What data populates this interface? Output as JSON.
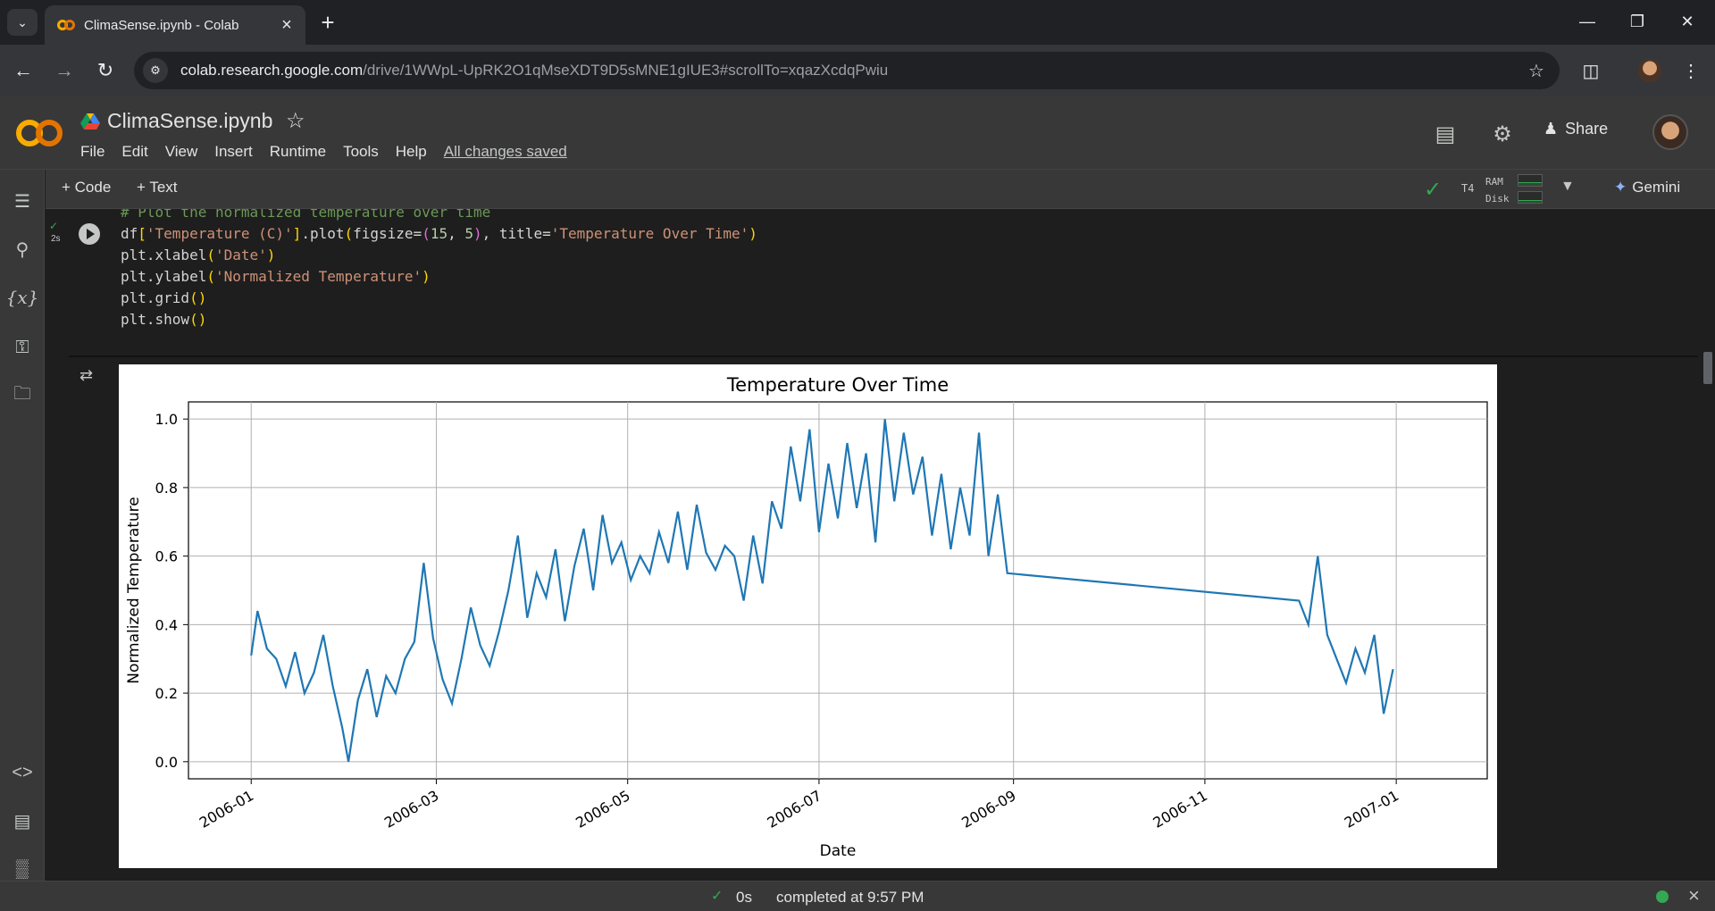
{
  "browser": {
    "tab_title": "ClimaSense.ipynb - Colab",
    "url_host": "colab.research.google.com",
    "url_path": "/drive/1WWpL-UpRK2O1qMseXDT9D5sMNE1gIUE3#scrollTo=xqazXcdqPwiu"
  },
  "colab": {
    "notebook_title": "ClimaSense.ipynb",
    "menu": [
      "File",
      "Edit",
      "View",
      "Insert",
      "Runtime",
      "Tools",
      "Help"
    ],
    "saved_status": "All changes saved",
    "share_label": "Share"
  },
  "toolbar": {
    "add_code": "+ Code",
    "add_text": "+ Text",
    "runtime_type": "T4",
    "ram_label": "RAM",
    "disk_label": "Disk",
    "gemini_label": "Gemini"
  },
  "cell": {
    "exec_time": "2s",
    "comment_line": "# Plot the normalized temperature over time",
    "lines": [
      "df['Temperature (C)'].plot(figsize=(15, 5), title='Temperature Over Time')",
      "plt.xlabel('Date')",
      "plt.ylabel('Normalized Temperature')",
      "plt.grid()",
      "plt.show()"
    ]
  },
  "chart_data": {
    "type": "line",
    "title": "Temperature Over Time",
    "xlabel": "Date",
    "ylabel": "Normalized Temperature",
    "ylim": [
      -0.05,
      1.05
    ],
    "xlim": [
      "2005-12-12",
      "2007-01-30"
    ],
    "grid": true,
    "x_ticks": [
      "2006-01",
      "2006-03",
      "2006-05",
      "2006-07",
      "2006-09",
      "2006-11",
      "2007-01"
    ],
    "y_ticks": [
      "0.0",
      "0.2",
      "0.4",
      "0.6",
      "0.8",
      "1.0"
    ],
    "color": "#1f77b4",
    "series": [
      {
        "points": [
          [
            "2006-01-01",
            0.31
          ],
          [
            "2006-01-03",
            0.44
          ],
          [
            "2006-01-06",
            0.33
          ],
          [
            "2006-01-09",
            0.3
          ],
          [
            "2006-01-12",
            0.22
          ],
          [
            "2006-01-15",
            0.32
          ],
          [
            "2006-01-18",
            0.2
          ],
          [
            "2006-01-21",
            0.26
          ],
          [
            "2006-01-24",
            0.37
          ],
          [
            "2006-01-27",
            0.22
          ],
          [
            "2006-01-30",
            0.1
          ],
          [
            "2006-02-01",
            0.0
          ],
          [
            "2006-02-04",
            0.18
          ],
          [
            "2006-02-07",
            0.27
          ],
          [
            "2006-02-10",
            0.13
          ],
          [
            "2006-02-13",
            0.25
          ],
          [
            "2006-02-16",
            0.2
          ],
          [
            "2006-02-19",
            0.3
          ],
          [
            "2006-02-22",
            0.35
          ],
          [
            "2006-02-25",
            0.58
          ],
          [
            "2006-02-28",
            0.36
          ],
          [
            "2006-03-03",
            0.24
          ],
          [
            "2006-03-06",
            0.17
          ],
          [
            "2006-03-09",
            0.3
          ],
          [
            "2006-03-12",
            0.45
          ],
          [
            "2006-03-15",
            0.34
          ],
          [
            "2006-03-18",
            0.28
          ],
          [
            "2006-03-21",
            0.38
          ],
          [
            "2006-03-24",
            0.5
          ],
          [
            "2006-03-27",
            0.66
          ],
          [
            "2006-03-30",
            0.42
          ],
          [
            "2006-04-02",
            0.55
          ],
          [
            "2006-04-05",
            0.48
          ],
          [
            "2006-04-08",
            0.62
          ],
          [
            "2006-04-11",
            0.41
          ],
          [
            "2006-04-14",
            0.57
          ],
          [
            "2006-04-17",
            0.68
          ],
          [
            "2006-04-20",
            0.5
          ],
          [
            "2006-04-23",
            0.72
          ],
          [
            "2006-04-26",
            0.58
          ],
          [
            "2006-04-29",
            0.64
          ],
          [
            "2006-05-02",
            0.53
          ],
          [
            "2006-05-05",
            0.6
          ],
          [
            "2006-05-08",
            0.55
          ],
          [
            "2006-05-11",
            0.67
          ],
          [
            "2006-05-14",
            0.58
          ],
          [
            "2006-05-17",
            0.73
          ],
          [
            "2006-05-20",
            0.56
          ],
          [
            "2006-05-23",
            0.75
          ],
          [
            "2006-05-26",
            0.61
          ],
          [
            "2006-05-29",
            0.56
          ],
          [
            "2006-06-01",
            0.63
          ],
          [
            "2006-06-04",
            0.6
          ],
          [
            "2006-06-07",
            0.47
          ],
          [
            "2006-06-10",
            0.66
          ],
          [
            "2006-06-13",
            0.52
          ],
          [
            "2006-06-16",
            0.76
          ],
          [
            "2006-06-19",
            0.68
          ],
          [
            "2006-06-22",
            0.92
          ],
          [
            "2006-06-25",
            0.76
          ],
          [
            "2006-06-28",
            0.97
          ],
          [
            "2006-07-01",
            0.67
          ],
          [
            "2006-07-04",
            0.87
          ],
          [
            "2006-07-07",
            0.71
          ],
          [
            "2006-07-10",
            0.93
          ],
          [
            "2006-07-13",
            0.74
          ],
          [
            "2006-07-16",
            0.9
          ],
          [
            "2006-07-19",
            0.64
          ],
          [
            "2006-07-22",
            1.0
          ],
          [
            "2006-07-25",
            0.76
          ],
          [
            "2006-07-28",
            0.96
          ],
          [
            "2006-07-31",
            0.78
          ],
          [
            "2006-08-03",
            0.89
          ],
          [
            "2006-08-06",
            0.66
          ],
          [
            "2006-08-09",
            0.84
          ],
          [
            "2006-08-12",
            0.62
          ],
          [
            "2006-08-15",
            0.8
          ],
          [
            "2006-08-18",
            0.66
          ],
          [
            "2006-08-21",
            0.96
          ],
          [
            "2006-08-24",
            0.6
          ],
          [
            "2006-08-27",
            0.78
          ],
          [
            "2006-08-30",
            0.55
          ],
          [
            "2006-12-01",
            0.47
          ],
          [
            "2006-12-04",
            0.4
          ],
          [
            "2006-12-07",
            0.6
          ],
          [
            "2006-12-10",
            0.37
          ],
          [
            "2006-12-13",
            0.3
          ],
          [
            "2006-12-16",
            0.23
          ],
          [
            "2006-12-19",
            0.33
          ],
          [
            "2006-12-22",
            0.26
          ],
          [
            "2006-12-25",
            0.37
          ],
          [
            "2006-12-28",
            0.14
          ],
          [
            "2006-12-31",
            0.27
          ]
        ]
      }
    ]
  },
  "status": {
    "elapsed": "0s",
    "completed_text": "completed at 9:57 PM"
  }
}
